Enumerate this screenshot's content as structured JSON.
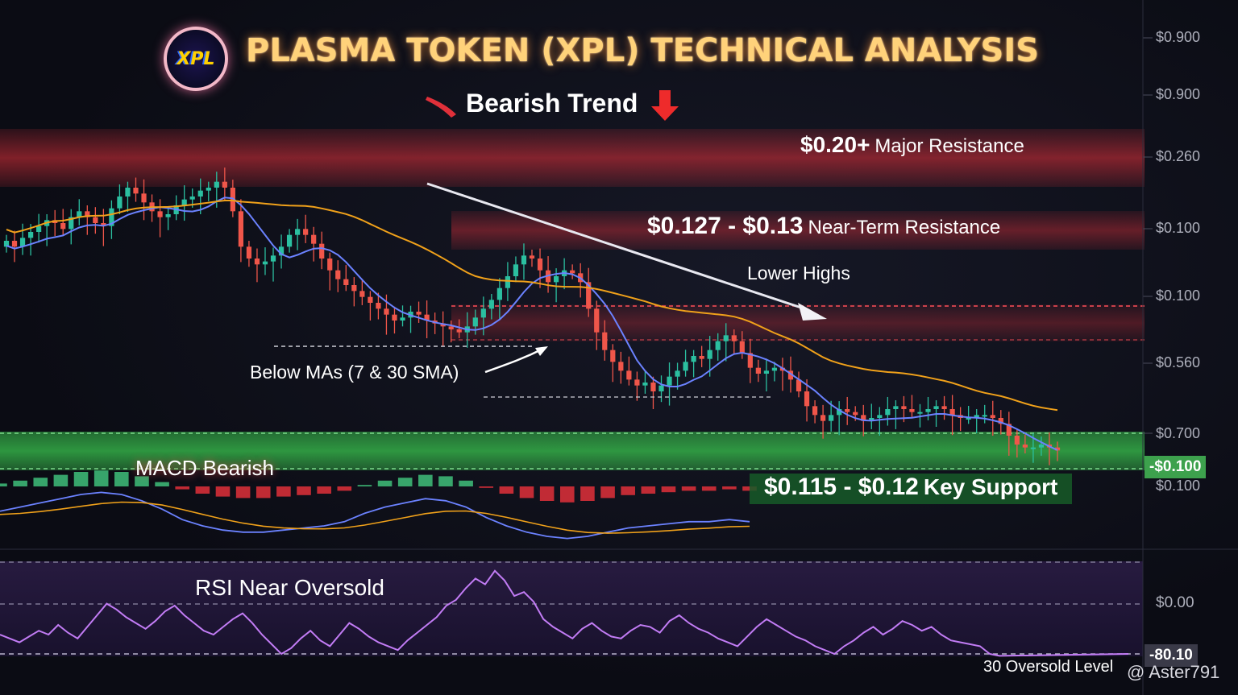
{
  "title": "PLASMA TOKEN (XPL) TECHNICAL ANALYSIS",
  "logo_text": "XPL",
  "subtitle": "Bearish Trend",
  "watermark": "@ Aster791",
  "colors": {
    "resistance": "#e0303a",
    "support": "#36b84a",
    "up_candle": "#2bbfa0",
    "down_candle": "#f0564a",
    "ma_fast": "#6b82ff",
    "ma_slow": "#f0a11a",
    "rsi": "#c27cf5"
  },
  "levels": {
    "major_resistance": {
      "value": "$0.20+",
      "label": "Major Resistance"
    },
    "near_resistance": {
      "value": "$0.127 - $0.13",
      "label": "Near-Term Resistance"
    },
    "key_support": {
      "value": "$0.115 - $0.12",
      "label": "Key Support"
    }
  },
  "annotations": {
    "lower_highs": "Lower Highs",
    "below_mas": "Below MAs (7 & 30 SMA)",
    "macd": "MACD Bearish",
    "rsi": "RSI Near Oversold",
    "oversold": "30 Oversold Level"
  },
  "price_axis_ticks": [
    "$0.900",
    "$0.900",
    "$0.260",
    "$0.100",
    "$0.100",
    "$0.560",
    "$0.700",
    "$0.100"
  ],
  "current_price_tag": "-$0.100",
  "rsi_axis_ticks": [
    "$0.00"
  ],
  "rsi_value_tag": "-80.10",
  "chart_data": {
    "type": "candlestick",
    "title": "PLASMA TOKEN (XPL) TECHNICAL ANALYSIS",
    "unit": "USD",
    "close": [
      0.178,
      0.176,
      0.179,
      0.181,
      0.183,
      0.185,
      0.184,
      0.182,
      0.186,
      0.188,
      0.186,
      0.184,
      0.183,
      0.189,
      0.193,
      0.196,
      0.194,
      0.191,
      0.188,
      0.186,
      0.187,
      0.19,
      0.192,
      0.193,
      0.195,
      0.196,
      0.198,
      0.196,
      0.188,
      0.176,
      0.172,
      0.17,
      0.171,
      0.173,
      0.176,
      0.18,
      0.182,
      0.18,
      0.177,
      0.172,
      0.168,
      0.165,
      0.163,
      0.161,
      0.159,
      0.157,
      0.155,
      0.153,
      0.151,
      0.152,
      0.154,
      0.153,
      0.151,
      0.15,
      0.149,
      0.148,
      0.147,
      0.149,
      0.152,
      0.155,
      0.158,
      0.162,
      0.166,
      0.17,
      0.173,
      0.172,
      0.168,
      0.164,
      0.166,
      0.168,
      0.167,
      0.164,
      0.155,
      0.147,
      0.141,
      0.137,
      0.134,
      0.131,
      0.129,
      0.13,
      0.127,
      0.129,
      0.132,
      0.134,
      0.137,
      0.139,
      0.138,
      0.141,
      0.144,
      0.146,
      0.144,
      0.14,
      0.135,
      0.133,
      0.134,
      0.135,
      0.134,
      0.131,
      0.127,
      0.122,
      0.119,
      0.117,
      0.119,
      0.121,
      0.12,
      0.119,
      0.117,
      0.118,
      0.119,
      0.121,
      0.122,
      0.121,
      0.12,
      0.12,
      0.121,
      0.122,
      0.121,
      0.119,
      0.118,
      0.118,
      0.119,
      0.119,
      0.118,
      0.116,
      0.112,
      0.109,
      0.108,
      0.108,
      0.109,
      0.108,
      0.107
    ],
    "ma_periods": [
      7,
      30
    ],
    "macd": [
      0.2,
      0.4,
      0.6,
      0.8,
      1.0,
      1.1,
      1.0,
      0.7,
      0.3,
      -0.2,
      -0.5,
      -0.7,
      -0.8,
      -0.8,
      -0.7,
      -0.6,
      -0.5,
      -0.3,
      0.1,
      0.4,
      0.6,
      0.8,
      0.7,
      0.4,
      -0.1,
      -0.5,
      -0.8,
      -1.0,
      -1.1,
      -1.0,
      -0.8,
      -0.6,
      -0.5,
      -0.4,
      -0.3,
      -0.3,
      -0.2,
      -0.3
    ],
    "rsi": [
      40,
      38,
      36,
      39,
      42,
      40,
      45,
      41,
      38,
      44,
      50,
      56,
      53,
      49,
      46,
      43,
      47,
      52,
      55,
      50,
      46,
      42,
      40,
      44,
      48,
      51,
      46,
      40,
      35,
      30,
      33,
      38,
      42,
      37,
      34,
      40,
      46,
      43,
      39,
      36,
      34,
      32,
      37,
      41,
      45,
      49,
      55,
      58,
      64,
      69,
      66,
      73,
      68,
      60,
      62,
      57,
      48,
      44,
      41,
      38,
      43,
      46,
      42,
      39,
      38,
      42,
      45,
      44,
      41,
      47,
      50,
      46,
      43,
      41,
      38,
      36,
      34,
      39,
      44,
      48,
      45,
      42,
      39,
      37,
      34,
      32,
      30,
      34,
      37,
      41,
      44,
      40,
      43,
      47,
      45,
      42,
      44,
      40,
      37,
      36,
      35,
      34,
      30,
      29
    ],
    "resistance_levels": [
      "$0.20+",
      "$0.127 - $0.13"
    ],
    "support_levels": [
      "$0.115 - $0.12"
    ],
    "rsi_oversold_level": 30
  }
}
